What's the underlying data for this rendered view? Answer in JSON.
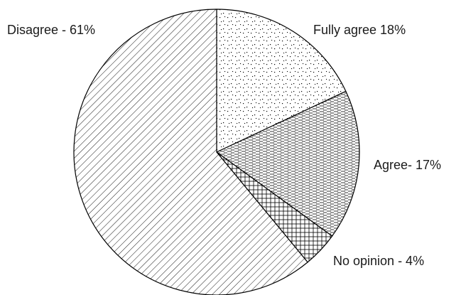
{
  "chart_data": {
    "type": "pie",
    "title": "",
    "start_angle_deg": 0,
    "direction": "clockwise",
    "slices": [
      {
        "name": "Fully agree",
        "value": 18,
        "label": "Fully agree 18%",
        "pattern": "dots"
      },
      {
        "name": "Agree",
        "value": 17,
        "label": "Agree- 17%",
        "pattern": "dashes"
      },
      {
        "name": "No opinion",
        "value": 4,
        "label": "No opinion - 4%",
        "pattern": "crosshatch"
      },
      {
        "name": "Disagree",
        "value": 61,
        "label": "Disagree - 61%",
        "pattern": "diagonal"
      }
    ],
    "colors": {
      "stroke": "#000000",
      "fill": "#ffffff",
      "pattern_ink": "#000000"
    }
  }
}
